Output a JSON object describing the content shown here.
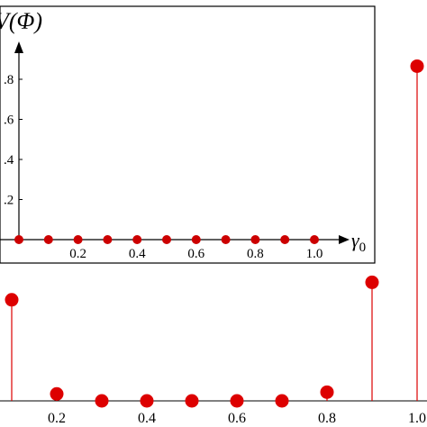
{
  "chart_data": [
    {
      "id": "main",
      "type": "scatter",
      "style": "stem",
      "xlabel": "",
      "ylabel": "",
      "xlim": [
        0.08,
        1.02
      ],
      "ylim": [
        0,
        1
      ],
      "x_ticks": [
        "0.2",
        "0.4",
        "0.6",
        "0.8",
        "1.0"
      ],
      "x_tick_values": [
        0.2,
        0.4,
        0.6,
        0.8,
        1.0
      ],
      "series": [
        {
          "color": "#dd0000",
          "x": [
            0.1,
            0.2,
            0.3,
            0.4,
            0.5,
            0.6,
            0.7,
            0.8,
            0.9,
            1.0
          ],
          "y": [
            0.29,
            0.02,
            0.0,
            0.0,
            0.0,
            0.0,
            0.0,
            0.025,
            0.34,
            0.96
          ]
        }
      ]
    },
    {
      "id": "inset",
      "type": "scatter",
      "xlabel": "γ0",
      "ylabel": "V(Φ)",
      "xlim": [
        0.0,
        1.1
      ],
      "ylim": [
        0,
        0.9
      ],
      "grid": false,
      "x_ticks": [
        "0.2",
        "0.4",
        "0.6",
        "0.8",
        "1.0"
      ],
      "x_tick_values": [
        0.2,
        0.4,
        0.6,
        0.8,
        1.0
      ],
      "y_ticks": [
        ".2",
        ".4",
        ".6",
        ".8"
      ],
      "y_tick_values": [
        0.2,
        0.4,
        0.6,
        0.8
      ],
      "series": [
        {
          "color": "#cc0000",
          "x": [
            0.0,
            0.1,
            0.2,
            0.3,
            0.4,
            0.5,
            0.6,
            0.7,
            0.8,
            0.9,
            1.0
          ],
          "y": [
            0,
            0,
            0,
            0,
            0,
            0,
            0,
            0,
            0,
            0,
            0
          ]
        }
      ]
    }
  ]
}
